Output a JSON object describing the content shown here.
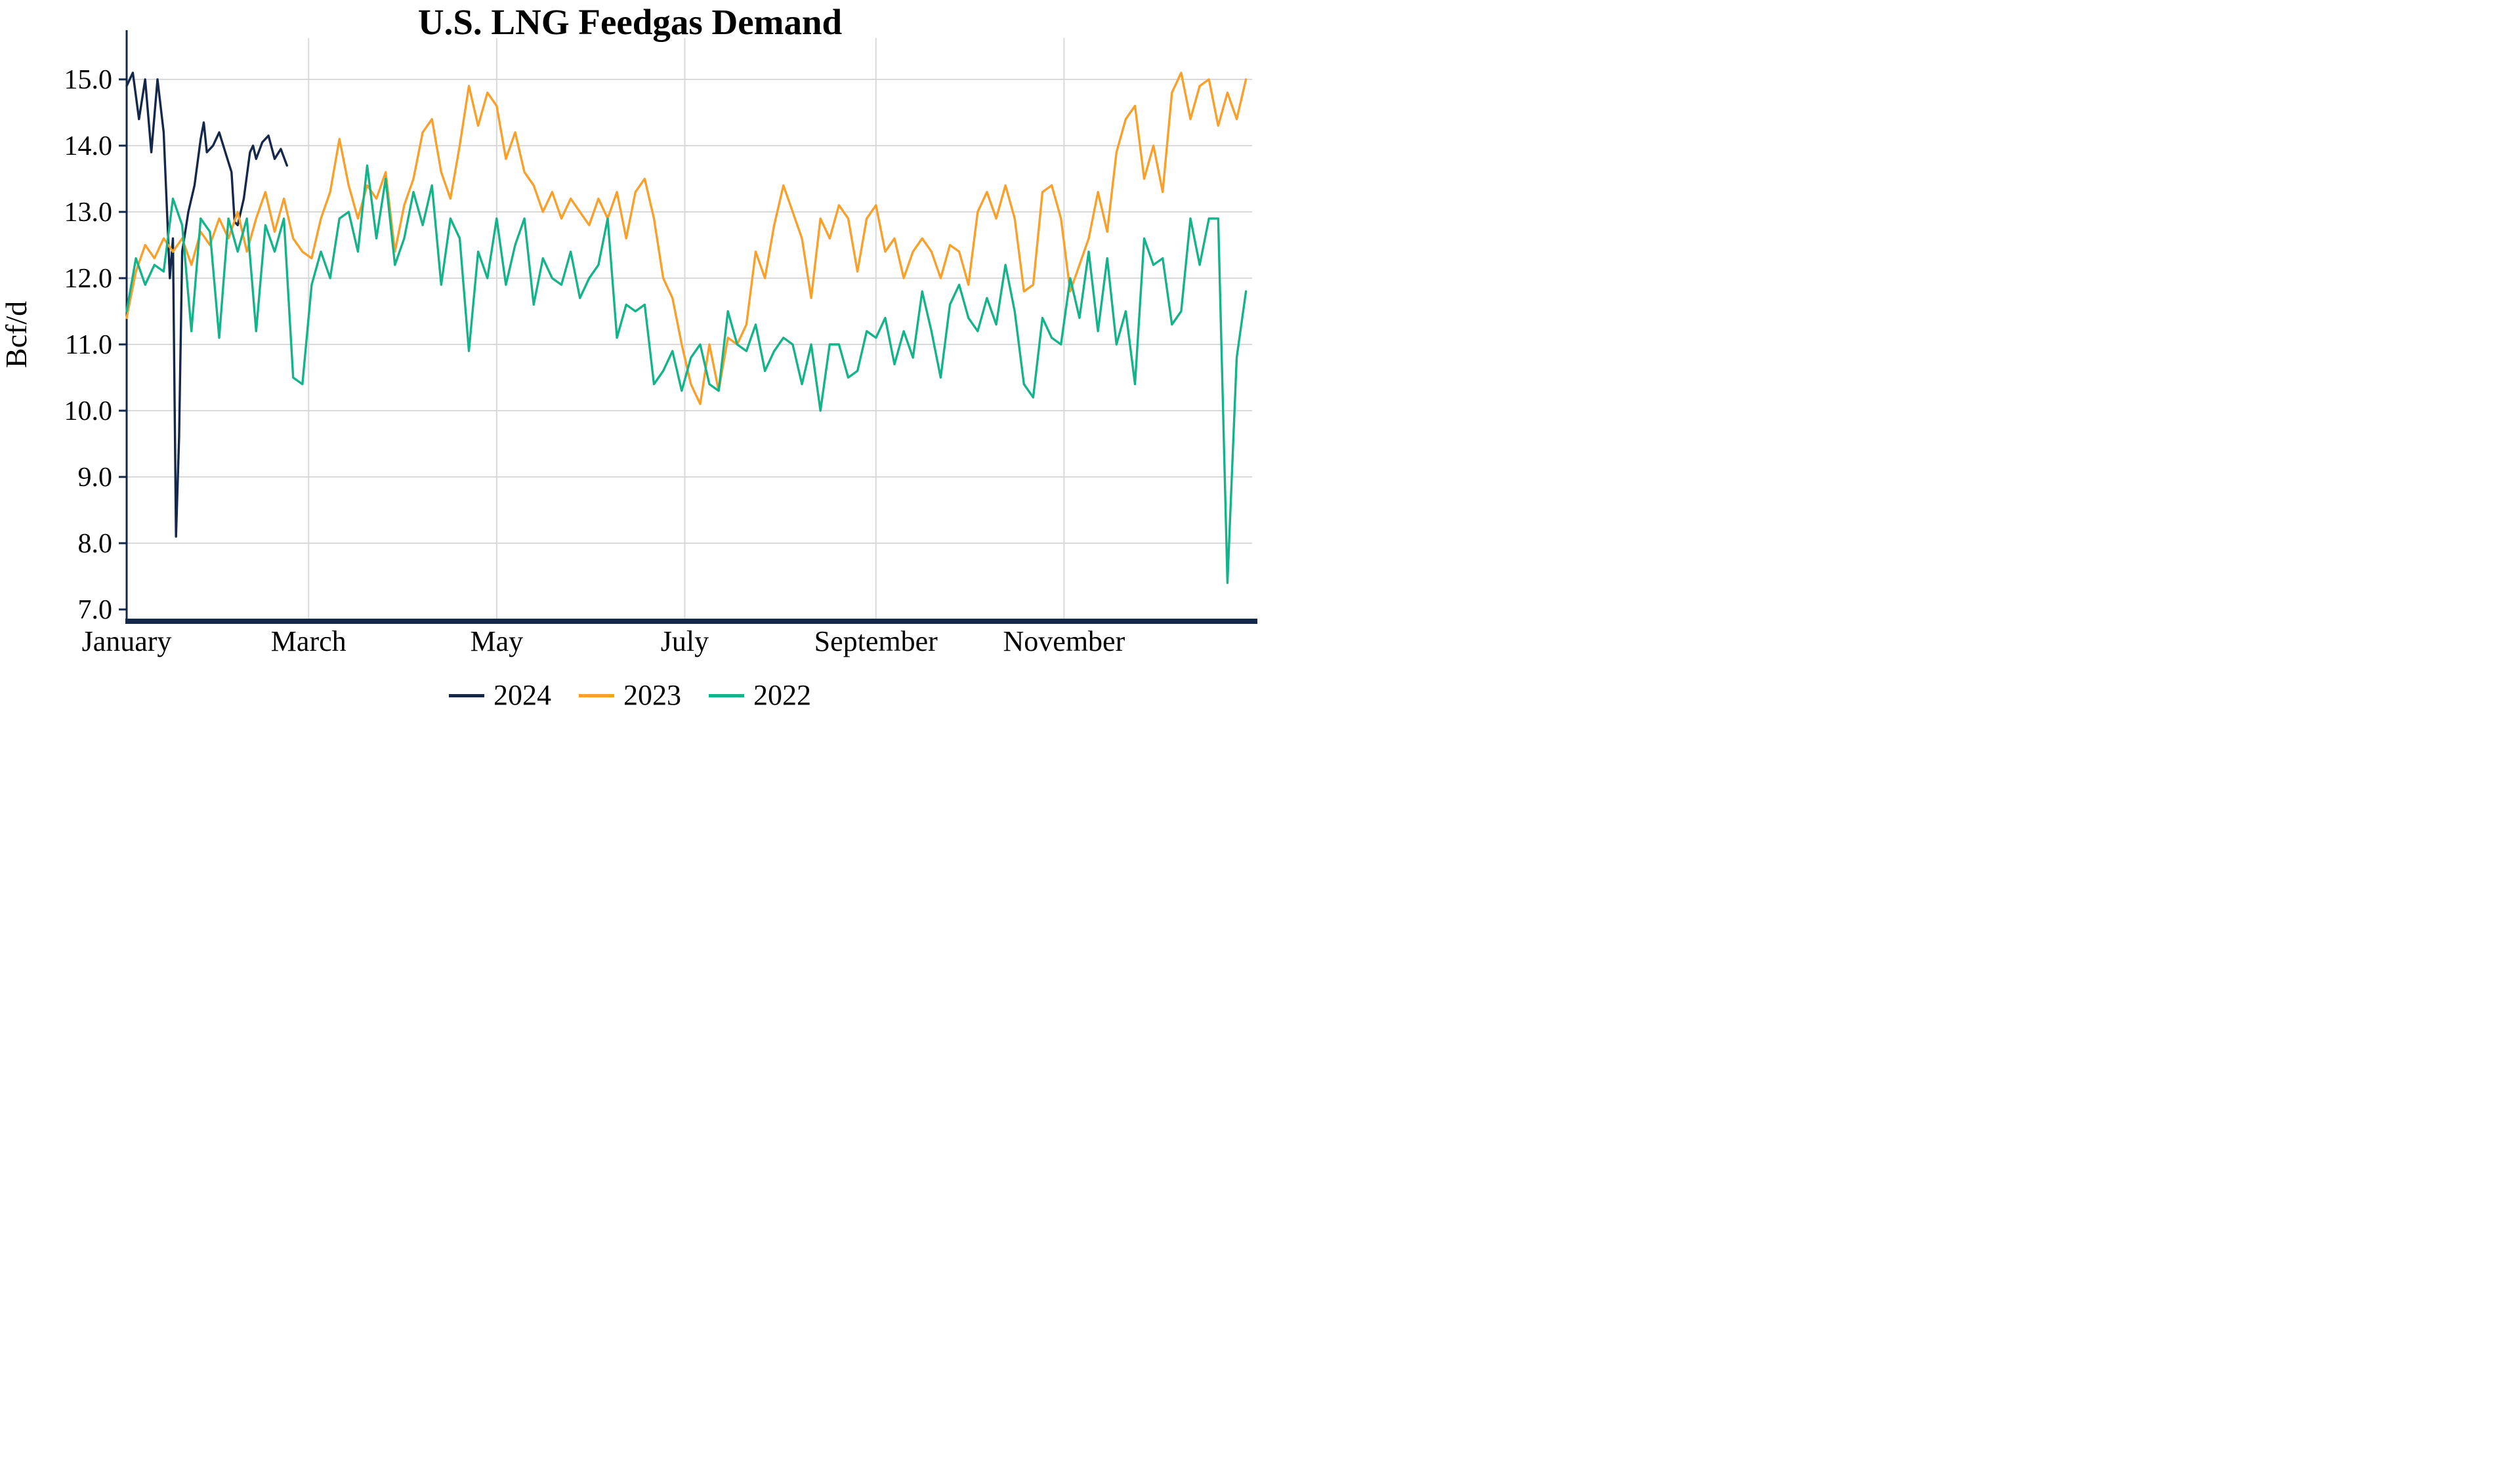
{
  "title": "U.S. LNG Feedgas Demand",
  "chart_data": {
    "type": "line",
    "title": "U.S. LNG Feedgas Demand",
    "xlabel": "",
    "ylabel": "Bcf/d",
    "x_unit": "day of year",
    "xlim": [
      1,
      366
    ],
    "ylim": [
      6.8,
      15.6
    ],
    "grid": true,
    "legend_position": "bottom",
    "y_ticks": [
      7,
      8,
      9,
      10,
      11,
      12,
      13,
      14,
      15
    ],
    "x_ticks": [
      {
        "day": 1,
        "label": "January"
      },
      {
        "day": 60,
        "label": "March"
      },
      {
        "day": 121,
        "label": "May"
      },
      {
        "day": 182,
        "label": "July"
      },
      {
        "day": 244,
        "label": "September"
      },
      {
        "day": 305,
        "label": "November"
      }
    ],
    "colors": {
      "grid": "#D9D9D9",
      "axis": "#14284B",
      "text": "#000000"
    },
    "series": [
      {
        "name": "2024",
        "color": "#14284B",
        "x": [
          1,
          3,
          5,
          7,
          9,
          11,
          13,
          15,
          16,
          17,
          18,
          19,
          21,
          23,
          25,
          26,
          27,
          29,
          31,
          33,
          35,
          36,
          37,
          39,
          41,
          42,
          43,
          45,
          47,
          49,
          51,
          53
        ],
        "values": [
          14.9,
          15.1,
          14.4,
          15.0,
          13.9,
          15.0,
          14.2,
          12.0,
          12.6,
          8.1,
          9.6,
          12.4,
          13.0,
          13.4,
          14.1,
          14.35,
          13.9,
          14.0,
          14.2,
          13.9,
          13.6,
          12.85,
          12.8,
          13.2,
          13.9,
          14.0,
          13.8,
          14.05,
          14.15,
          13.8,
          13.95,
          13.7
        ]
      },
      {
        "name": "2023",
        "color": "#F9A02B",
        "x_start": 1,
        "x_step": 3,
        "values": [
          11.4,
          12.1,
          12.5,
          12.3,
          12.6,
          12.4,
          12.6,
          12.2,
          12.7,
          12.5,
          12.9,
          12.6,
          13.0,
          12.4,
          12.9,
          13.3,
          12.7,
          13.2,
          12.6,
          12.4,
          12.3,
          12.9,
          13.3,
          14.1,
          13.4,
          12.9,
          13.4,
          13.2,
          13.6,
          12.4,
          13.1,
          13.5,
          14.2,
          14.4,
          13.6,
          13.2,
          14.0,
          14.9,
          14.3,
          14.8,
          14.6,
          13.8,
          14.2,
          13.6,
          13.4,
          13.0,
          13.3,
          12.9,
          13.2,
          13.0,
          12.8,
          13.2,
          12.9,
          13.3,
          12.6,
          13.3,
          13.5,
          12.9,
          12.0,
          11.7,
          11.0,
          10.4,
          10.1,
          11.0,
          10.3,
          11.1,
          11.0,
          11.3,
          12.4,
          12.0,
          12.8,
          13.4,
          13.0,
          12.6,
          11.7,
          12.9,
          12.6,
          13.1,
          12.9,
          12.1,
          12.9,
          13.1,
          12.4,
          12.6,
          12.0,
          12.4,
          12.6,
          12.4,
          12.0,
          12.5,
          12.4,
          11.9,
          13.0,
          13.3,
          12.9,
          13.4,
          12.9,
          11.8,
          11.9,
          13.3,
          13.4,
          12.9,
          11.8,
          12.2,
          12.6,
          13.3,
          12.7,
          13.9,
          14.4,
          14.6,
          13.5,
          14.0,
          13.3,
          14.8,
          15.1,
          14.4,
          14.9,
          15.0,
          14.3,
          14.8,
          14.4,
          15.0
        ]
      },
      {
        "name": "2022",
        "color": "#14B38A",
        "x_start": 1,
        "x_step": 3,
        "values": [
          11.5,
          12.3,
          11.9,
          12.2,
          12.1,
          13.2,
          12.8,
          11.2,
          12.9,
          12.7,
          11.1,
          12.9,
          12.4,
          12.9,
          11.2,
          12.8,
          12.4,
          12.9,
          10.5,
          10.4,
          11.9,
          12.4,
          12.0,
          12.9,
          13.0,
          12.4,
          13.7,
          12.6,
          13.5,
          12.2,
          12.6,
          13.3,
          12.8,
          13.4,
          11.9,
          12.9,
          12.6,
          10.9,
          12.4,
          12.0,
          12.9,
          11.9,
          12.5,
          12.9,
          11.6,
          12.3,
          12.0,
          11.9,
          12.4,
          11.7,
          12.0,
          12.2,
          12.9,
          11.1,
          11.6,
          11.5,
          11.6,
          10.4,
          10.6,
          10.9,
          10.3,
          10.8,
          11.0,
          10.4,
          10.3,
          11.5,
          11.0,
          10.9,
          11.3,
          10.6,
          10.9,
          11.1,
          11.0,
          10.4,
          11.0,
          10.0,
          11.0,
          11.0,
          10.5,
          10.6,
          11.2,
          11.1,
          11.4,
          10.7,
          11.2,
          10.8,
          11.8,
          11.2,
          10.5,
          11.6,
          11.9,
          11.4,
          11.2,
          11.7,
          11.3,
          12.2,
          11.5,
          10.4,
          10.2,
          11.4,
          11.1,
          11.0,
          12.0,
          11.4,
          12.4,
          11.2,
          12.3,
          11.0,
          11.5,
          10.4,
          12.6,
          12.2,
          12.3,
          11.3,
          11.5,
          12.9,
          12.2,
          12.9,
          12.9,
          7.4,
          10.8,
          11.8
        ]
      }
    ]
  }
}
